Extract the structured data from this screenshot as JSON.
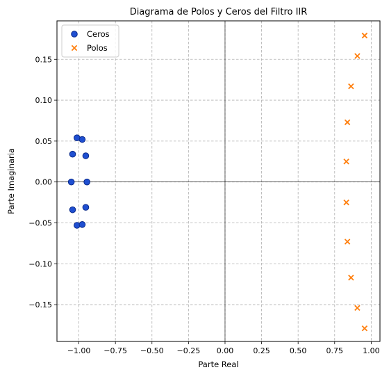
{
  "chart_data": {
    "type": "scatter",
    "title": "Diagrama de Polos y Ceros del Filtro IIR",
    "xlabel": "Parte Real",
    "ylabel": "Parte Imaginaria",
    "xlim": [
      -1.15,
      1.06
    ],
    "ylim": [
      -0.195,
      0.197
    ],
    "xticks": [
      -1.0,
      -0.75,
      -0.5,
      -0.25,
      0.0,
      0.25,
      0.5,
      0.75,
      1.0
    ],
    "xtick_labels": [
      "−1.00",
      "−0.75",
      "−0.50",
      "−0.25",
      "0.00",
      "0.25",
      "0.50",
      "0.75",
      "1.00"
    ],
    "yticks": [
      -0.15,
      -0.1,
      -0.05,
      0.0,
      0.05,
      0.1,
      0.15
    ],
    "ytick_labels": [
      "−0.15",
      "−0.10",
      "−0.05",
      "0.00",
      "0.05",
      "0.10",
      "0.15"
    ],
    "grid": true,
    "grid_style": "dashed",
    "legend_position": "upper-left",
    "series": [
      {
        "name": "Ceros",
        "marker": "circle",
        "color": "#1f4fd1",
        "edge_color": "#0a2a8a",
        "points": [
          {
            "x": -1.052,
            "y": 0.0
          },
          {
            "x": -1.043,
            "y": 0.034
          },
          {
            "x": -1.043,
            "y": -0.034
          },
          {
            "x": -1.013,
            "y": 0.054
          },
          {
            "x": -1.013,
            "y": -0.053
          },
          {
            "x": -0.977,
            "y": 0.052
          },
          {
            "x": -0.977,
            "y": -0.052
          },
          {
            "x": -0.953,
            "y": 0.032
          },
          {
            "x": -0.953,
            "y": -0.031
          },
          {
            "x": -0.945,
            "y": 0.0
          }
        ]
      },
      {
        "name": "Polos",
        "marker": "x",
        "color": "#ff7f0e",
        "points": [
          {
            "x": 0.955,
            "y": 0.179
          },
          {
            "x": 0.955,
            "y": -0.179
          },
          {
            "x": 0.905,
            "y": 0.154
          },
          {
            "x": 0.905,
            "y": -0.154
          },
          {
            "x": 0.862,
            "y": 0.117
          },
          {
            "x": 0.862,
            "y": -0.117
          },
          {
            "x": 0.837,
            "y": 0.073
          },
          {
            "x": 0.837,
            "y": -0.073
          },
          {
            "x": 0.83,
            "y": 0.025
          },
          {
            "x": 0.83,
            "y": -0.025
          }
        ]
      }
    ]
  }
}
